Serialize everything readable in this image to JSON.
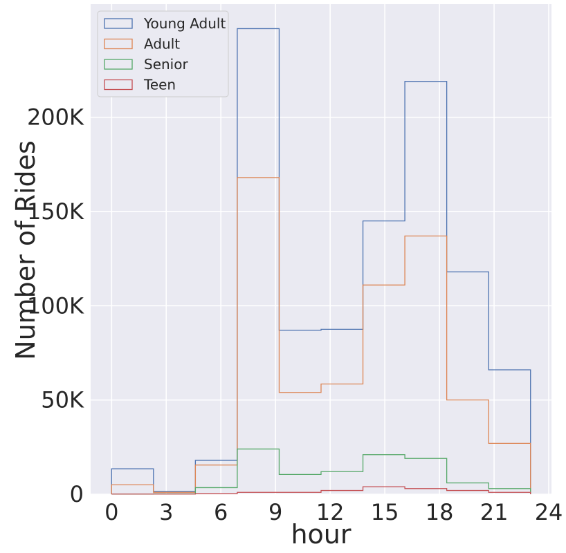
{
  "chart_data": {
    "type": "histogram",
    "xlabel": "hour",
    "ylabel": "Number of Rides",
    "xlim": [
      -1.15,
      24.15
    ],
    "ylim": [
      0,
      260000
    ],
    "grid": true,
    "legend_position": "top-left",
    "x_ticks": [
      0,
      3,
      6,
      9,
      12,
      15,
      18,
      21,
      24
    ],
    "x_tick_labels": [
      "0",
      "3",
      "6",
      "9",
      "12",
      "15",
      "18",
      "21",
      "24"
    ],
    "y_ticks": [
      0,
      50000,
      100000,
      150000,
      200000
    ],
    "y_tick_labels": [
      "0",
      "50K",
      "100K",
      "150K",
      "200K"
    ],
    "bin_edges": [
      0,
      2.3,
      4.6,
      6.9,
      9.2,
      11.5,
      13.8,
      16.1,
      18.4,
      20.7,
      23
    ],
    "series": [
      {
        "name": "Young Adult",
        "color": "#4c72b0",
        "values": [
          13500,
          1500,
          18000,
          247000,
          87000,
          87500,
          145000,
          219000,
          118000,
          66000
        ]
      },
      {
        "name": "Adult",
        "color": "#dd8452",
        "values": [
          5000,
          1000,
          15500,
          168000,
          54000,
          58500,
          111000,
          137000,
          50000,
          27000
        ]
      },
      {
        "name": "Senior",
        "color": "#55a868",
        "values": [
          100,
          200,
          3500,
          24000,
          10500,
          12000,
          21000,
          19000,
          6000,
          3000
        ]
      },
      {
        "name": "Teen",
        "color": "#c44e52",
        "values": [
          100,
          100,
          300,
          1000,
          1000,
          2000,
          4000,
          3000,
          2000,
          1000
        ]
      }
    ]
  }
}
